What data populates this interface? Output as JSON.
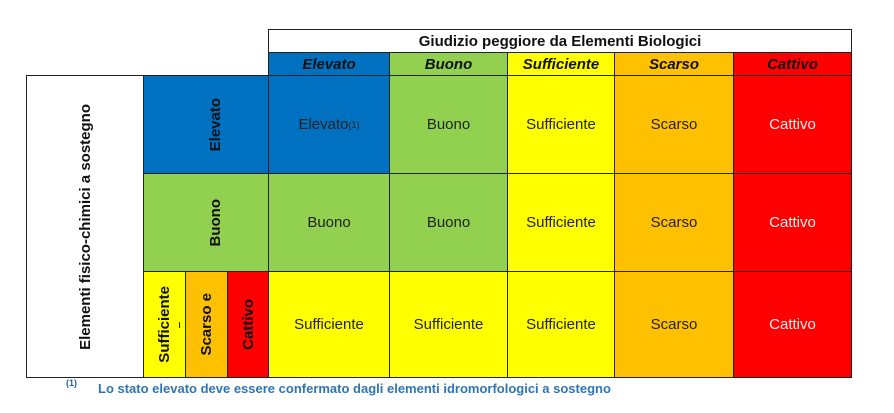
{
  "title": "Giudizio peggiore da Elementi Biologici",
  "row_axis_label": "Elementi fisico-chimici a sostegno",
  "column_headers": [
    "Elevato",
    "Buono",
    "Sufficiente",
    "Scarso",
    "Cattivo"
  ],
  "row_headers": {
    "elevato": "Elevato",
    "buono": "Buono",
    "sufficiente": "Sufficiente",
    "scarso": "Scarso e",
    "cattivo": "Cattivo"
  },
  "rows": [
    [
      "Elevato",
      "Buono",
      "Sufficiente",
      "Scarso",
      "Cattivo"
    ],
    [
      "Buono",
      "Buono",
      "Sufficiente",
      "Scarso",
      "Cattivo"
    ],
    [
      "Sufficiente",
      "Sufficiente",
      "Sufficiente",
      "Scarso",
      "Cattivo"
    ]
  ],
  "footnote_ref": "(1)",
  "footnote_marker": "(1)",
  "footnote_text": "Lo stato elevato deve essere confermato dagli elementi idromorfologici a sostegno",
  "colors": {
    "elevato": "#0070c0",
    "buono": "#92d050",
    "sufficiente": "#ffff00",
    "scarso": "#ffc000",
    "cattivo": "#ff0000"
  }
}
